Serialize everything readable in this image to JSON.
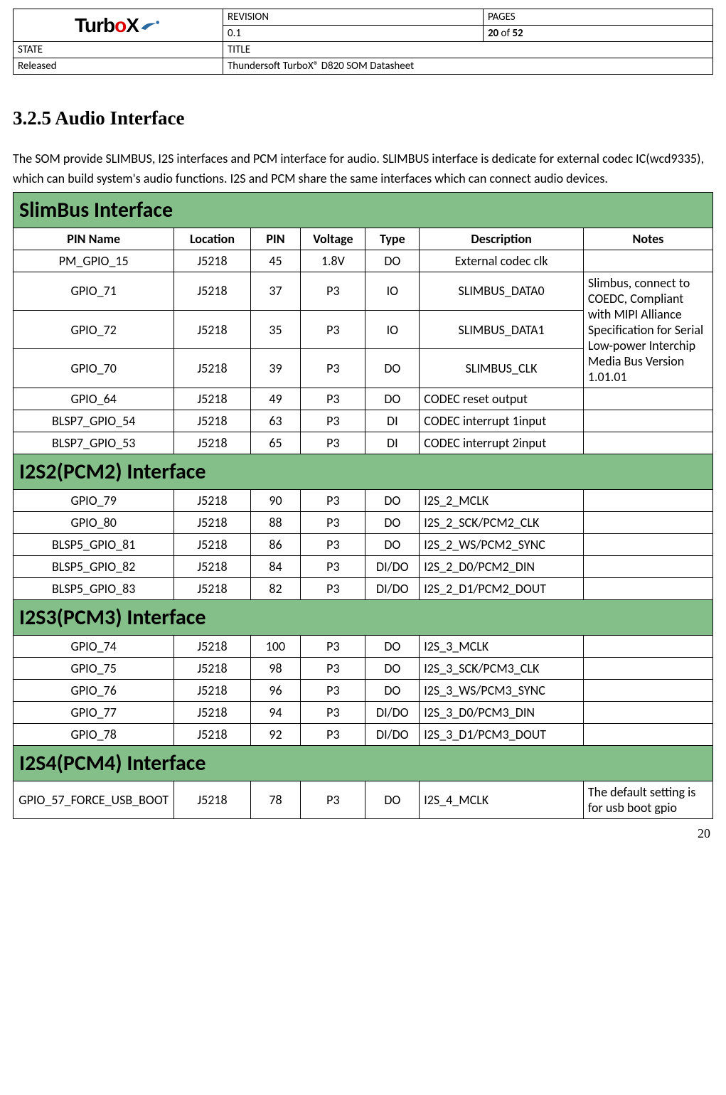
{
  "header": {
    "labels": {
      "revision": "REVISION",
      "pages": "PAGES",
      "state": "STATE",
      "title": "TITLE"
    },
    "revision": "0.1",
    "pages_current": "20",
    "pages_sep": " of ",
    "pages_total": "52",
    "state": "Released",
    "title": "Thundersoft TurboX® D820 SOM Datasheet",
    "logo_text_1": "Turb",
    "logo_text_2": "o",
    "logo_text_3": "X"
  },
  "section": {
    "heading": "3.2.5 Audio Interface",
    "intro": "The SOM provide SLIMBUS, I2S interfaces and PCM interface for audio. SLIMBUS interface is dedicate for external codec IC(wcd9335), which can build system's audio functions. I2S and PCM share the same interfaces which can connect audio devices."
  },
  "columns": {
    "pin_name": "PIN Name",
    "location": "Location",
    "pin": "PIN",
    "voltage": "Voltage",
    "type": "Type",
    "description": "Description",
    "notes": "Notes"
  },
  "groups": [
    {
      "title": "SlimBus Interface",
      "show_header": true,
      "merged_note": "Slimbus, connect to COEDC, Compliant with MIPI Alliance Specification for Serial Low-power Interchip Media Bus Version 1.01.01",
      "merged_start": 1,
      "merged_span": 3,
      "rows": [
        {
          "pin_name": "PM_GPIO_15",
          "location": "J5218",
          "pin": "45",
          "voltage": "1.8V",
          "type": "DO",
          "desc": "External codec clk",
          "desc_align": "center",
          "notes": ""
        },
        {
          "pin_name": "GPIO_71",
          "location": "J5218",
          "pin": "37",
          "voltage": "P3",
          "type": "IO",
          "desc": "SLIMBUS_DATA0",
          "desc_align": "center",
          "notes": null
        },
        {
          "pin_name": "GPIO_72",
          "location": "J5218",
          "pin": "35",
          "voltage": "P3",
          "type": "IO",
          "desc": "SLIMBUS_DATA1",
          "desc_align": "center",
          "notes": null
        },
        {
          "pin_name": "GPIO_70",
          "location": "J5218",
          "pin": "39",
          "voltage": "P3",
          "type": "DO",
          "desc": "SLIMBUS_CLK",
          "desc_align": "center",
          "notes": null
        },
        {
          "pin_name": "GPIO_64",
          "location": "J5218",
          "pin": "49",
          "voltage": "P3",
          "type": "DO",
          "desc": "CODEC reset output",
          "desc_align": "left",
          "notes": ""
        },
        {
          "pin_name": "BLSP7_GPIO_54",
          "location": "J5218",
          "pin": "63",
          "voltage": "P3",
          "type": "DI",
          "desc": "CODEC interrupt 1input",
          "desc_align": "left",
          "notes": ""
        },
        {
          "pin_name": "BLSP7_GPIO_53",
          "location": "J5218",
          "pin": "65",
          "voltage": "P3",
          "type": "DI",
          "desc": "CODEC interrupt 2input",
          "desc_align": "left",
          "notes": ""
        }
      ]
    },
    {
      "title": "I2S2(PCM2) Interface",
      "show_header": false,
      "rows": [
        {
          "pin_name": "GPIO_79",
          "location": "J5218",
          "pin": "90",
          "voltage": "P3",
          "type": "DO",
          "desc": "I2S_2_MCLK",
          "desc_align": "left",
          "notes": ""
        },
        {
          "pin_name": "GPIO_80",
          "location": "J5218",
          "pin": "88",
          "voltage": "P3",
          "type": "DO",
          "desc": "I2S_2_SCK/PCM2_CLK",
          "desc_align": "left",
          "notes": ""
        },
        {
          "pin_name": "BLSP5_GPIO_81",
          "location": "J5218",
          "pin": "86",
          "voltage": "P3",
          "type": "DO",
          "desc": "I2S_2_WS/PCM2_SYNC",
          "desc_align": "left",
          "notes": ""
        },
        {
          "pin_name": "BLSP5_GPIO_82",
          "location": "J5218",
          "pin": "84",
          "voltage": "P3",
          "type": "DI/DO",
          "desc": "I2S_2_D0/PCM2_DIN",
          "desc_align": "left",
          "notes": ""
        },
        {
          "pin_name": "BLSP5_GPIO_83",
          "location": "J5218",
          "pin": "82",
          "voltage": "P3",
          "type": "DI/DO",
          "desc": "I2S_2_D1/PCM2_DOUT",
          "desc_align": "left",
          "notes": ""
        }
      ]
    },
    {
      "title": "I2S3(PCM3) Interface",
      "show_header": false,
      "rows": [
        {
          "pin_name": "GPIO_74",
          "location": "J5218",
          "pin": "100",
          "voltage": "P3",
          "type": "DO",
          "desc": "I2S_3_MCLK",
          "desc_align": "left",
          "notes": ""
        },
        {
          "pin_name": "GPIO_75",
          "location": "J5218",
          "pin": "98",
          "voltage": "P3",
          "type": "DO",
          "desc": "I2S_3_SCK/PCM3_CLK",
          "desc_align": "left",
          "notes": ""
        },
        {
          "pin_name": "GPIO_76",
          "location": "J5218",
          "pin": "96",
          "voltage": "P3",
          "type": "DO",
          "desc": "I2S_3_WS/PCM3_SYNC",
          "desc_align": "left",
          "notes": ""
        },
        {
          "pin_name": "GPIO_77",
          "location": "J5218",
          "pin": "94",
          "voltage": "P3",
          "type": "DI/DO",
          "desc": "I2S_3_D0/PCM3_DIN",
          "desc_align": "left",
          "notes": ""
        },
        {
          "pin_name": "GPIO_78",
          "location": "J5218",
          "pin": "92",
          "voltage": "P3",
          "type": "DI/DO",
          "desc": "I2S_3_D1/PCM3_DOUT",
          "desc_align": "left",
          "notes": ""
        }
      ]
    },
    {
      "title": "I2S4(PCM4) Interface",
      "show_header": false,
      "rows": [
        {
          "pin_name": "GPIO_57_FORCE_USB_BOOT",
          "location": "J5218",
          "pin": "78",
          "voltage": "P3",
          "type": "DO",
          "desc": "I2S_4_MCLK",
          "desc_align": "left",
          "notes": "The default setting is for usb boot gpio"
        }
      ]
    }
  ],
  "page_number": "20",
  "colors": {
    "section_bg": "#84bf8a",
    "border": "#000000",
    "logo_red": "#d00000",
    "logo_blue": "#2a6aa0"
  }
}
